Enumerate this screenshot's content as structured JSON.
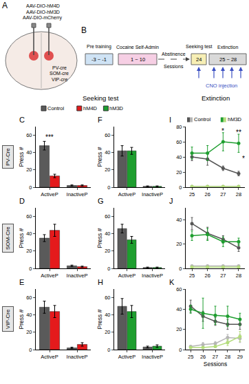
{
  "figure": {
    "panel_a": {
      "letter": "A",
      "viruses": [
        "AAV-DIO-hM4D",
        "AAV-DIO-hM3D",
        "AAV-DIO-mCherry"
      ],
      "cre_lines": [
        "PV-cre",
        "SOM-cre",
        "VIP-cre"
      ]
    },
    "panel_b": {
      "letter": "B",
      "stages": [
        {
          "label": "Pre training",
          "sessions": "-3 ~ -1"
        },
        {
          "label": "Cocaine Self-Admin",
          "sessions": "1 ~ 10"
        },
        {
          "label": "Abstinence"
        },
        {
          "label": "Seeking test",
          "sessions": "24"
        },
        {
          "label": "Extinction",
          "sessions": "25 ~ 28"
        }
      ],
      "axis_label": "Sessions",
      "injection": "CNO injection"
    },
    "column_titles": [
      "Seeking test",
      "Extinction"
    ],
    "row_labels": [
      "PV-Cre",
      "SOM-Cre",
      "VIP-Cre"
    ],
    "legend_items": [
      {
        "name": "Control",
        "color": "#5a5a5a"
      },
      {
        "name": "hM4D",
        "color": "#e41a1c"
      },
      {
        "name": "hM3D",
        "color": "#1e9e2f"
      }
    ]
  },
  "chart_data": [
    {
      "panel": "C",
      "type": "bar",
      "y_label": "Press #",
      "categories": [
        "ActiveP",
        "InactiveP"
      ],
      "series": [
        {
          "name": "Control",
          "color": "#5a5a5a",
          "values": [
            48,
            2
          ],
          "errors": [
            5,
            0.6
          ]
        },
        {
          "name": "hM4D",
          "color": "#e41a1c",
          "values": [
            13,
            2
          ],
          "errors": [
            2,
            0.6
          ]
        }
      ],
      "ylim": [
        0,
        70
      ],
      "yticks": [
        0,
        20,
        40,
        60
      ],
      "annotations": [
        {
          "text": "***",
          "x": "ActiveP",
          "y": 58
        }
      ]
    },
    {
      "panel": "D",
      "type": "bar",
      "y_label": "Press #",
      "categories": [
        "ActiveP",
        "InactiveP"
      ],
      "series": [
        {
          "name": "Control",
          "color": "#5a5a5a",
          "values": [
            35,
            3
          ],
          "errors": [
            4,
            0.8
          ]
        },
        {
          "name": "hM4D",
          "color": "#e41a1c",
          "values": [
            44,
            2
          ],
          "errors": [
            7,
            0.6
          ]
        }
      ],
      "ylim": [
        0,
        70
      ],
      "yticks": [
        0,
        20,
        40,
        60
      ]
    },
    {
      "panel": "E",
      "type": "bar",
      "y_label": "Press #",
      "categories": [
        "ActiveP",
        "InactiveP"
      ],
      "series": [
        {
          "name": "Control",
          "color": "#5a5a5a",
          "values": [
            49,
            2
          ],
          "errors": [
            7,
            0.8
          ]
        },
        {
          "name": "hM4D",
          "color": "#e41a1c",
          "values": [
            44,
            6
          ],
          "errors": [
            7,
            2
          ]
        }
      ],
      "ylim": [
        0,
        70
      ],
      "yticks": [
        0,
        20,
        40,
        60
      ]
    },
    {
      "panel": "F",
      "type": "bar",
      "y_label": "Press #",
      "categories": [
        "ActiveP",
        "InactiveP"
      ],
      "series": [
        {
          "name": "Control",
          "color": "#5a5a5a",
          "values": [
            42,
            1
          ],
          "errors": [
            6,
            0.5
          ]
        },
        {
          "name": "hM3D",
          "color": "#1e9e2f",
          "values": [
            42,
            1
          ],
          "errors": [
            4,
            0.5
          ]
        }
      ],
      "ylim": [
        0,
        70
      ],
      "yticks": [
        0,
        20,
        40,
        60
      ]
    },
    {
      "panel": "G",
      "type": "bar",
      "y_label": "Press #",
      "categories": [
        "ActiveP",
        "InactiveP"
      ],
      "series": [
        {
          "name": "Control",
          "color": "#5a5a5a",
          "values": [
            46,
            1
          ],
          "errors": [
            5,
            0.5
          ]
        },
        {
          "name": "hM3D",
          "color": "#1e9e2f",
          "values": [
            33,
            1
          ],
          "errors": [
            4,
            0.5
          ]
        }
      ],
      "ylim": [
        0,
        70
      ],
      "yticks": [
        0,
        20,
        40,
        60
      ]
    },
    {
      "panel": "H",
      "type": "bar",
      "y_label": "Press #",
      "categories": [
        "ActiveP",
        "InactiveP"
      ],
      "series": [
        {
          "name": "Control",
          "color": "#5a5a5a",
          "values": [
            50,
            3
          ],
          "errors": [
            9,
            1
          ]
        },
        {
          "name": "hM3D",
          "color": "#1e9e2f",
          "values": [
            44,
            4
          ],
          "errors": [
            7,
            1.5
          ]
        }
      ],
      "ylim": [
        0,
        70
      ],
      "yticks": [
        0,
        20,
        40,
        60
      ]
    },
    {
      "panel": "I",
      "type": "line",
      "legend": "top",
      "x": [
        25,
        26,
        27,
        28
      ],
      "series": [
        {
          "name": "Control",
          "color": "#555555",
          "values": [
            40,
            37,
            25,
            18
          ],
          "errors": [
            5,
            8,
            3,
            3
          ]
        },
        {
          "name": "Control",
          "color": "#b5b5b5",
          "values": [
            1,
            1,
            1,
            1
          ],
          "errors": [
            0.5,
            0.5,
            0.5,
            0.5
          ]
        },
        {
          "name": "hM3D",
          "color": "#1e9e2f",
          "values": [
            45,
            45,
            60,
            58
          ],
          "errors": [
            8,
            10,
            12,
            12
          ]
        },
        {
          "name": "hM3D",
          "color": "#b3dc7c",
          "values": [
            1,
            1,
            1,
            1
          ],
          "errors": [
            0.5,
            0.5,
            0.5,
            0.5
          ]
        }
      ],
      "xlim": [
        24.6,
        28.4
      ],
      "xticks": [
        25,
        26,
        27,
        28
      ],
      "ylim": [
        0,
        80
      ],
      "yticks": [
        0,
        20,
        40,
        60,
        80
      ],
      "annotations": [
        {
          "text": "*",
          "x": 27,
          "y": 74
        },
        {
          "text": "**",
          "x": 28,
          "y": 72
        },
        {
          "text": "*",
          "x": 28.3,
          "y": 38
        }
      ]
    },
    {
      "panel": "J",
      "type": "line",
      "x": [
        25,
        26,
        27,
        28
      ],
      "series": [
        {
          "name": "Control",
          "color": "#555555",
          "values": [
            37,
            29,
            24,
            17
          ],
          "errors": [
            5,
            5,
            3,
            3
          ]
        },
        {
          "name": "Control",
          "color": "#b5b5b5",
          "values": [
            2,
            2,
            2,
            2
          ],
          "errors": [
            0.6,
            0.6,
            0.6,
            0.6
          ]
        },
        {
          "name": "hM3D",
          "color": "#1e9e2f",
          "values": [
            27,
            28,
            22,
            22
          ],
          "errors": [
            4,
            5,
            4,
            3
          ]
        },
        {
          "name": "hM3D",
          "color": "#b3dc7c",
          "values": [
            1,
            1,
            1,
            1
          ],
          "errors": [
            0.5,
            0.5,
            0.5,
            0.5
          ]
        }
      ],
      "xlim": [
        24.6,
        28.4
      ],
      "xticks": [
        25,
        26,
        27,
        28
      ],
      "ylim": [
        0,
        50
      ],
      "yticks": [
        0,
        20,
        40
      ]
    },
    {
      "panel": "K",
      "type": "line",
      "x_label": "Sessions",
      "x": [
        25,
        26,
        27,
        28,
        29
      ],
      "series": [
        {
          "name": "Control",
          "color": "#555555",
          "values": [
            43,
            33,
            28,
            25,
            25
          ],
          "errors": [
            6,
            5,
            4,
            5,
            5
          ]
        },
        {
          "name": "Control",
          "color": "#b5b5b5",
          "values": [
            3,
            5,
            6,
            12,
            11
          ],
          "errors": [
            1,
            2,
            2,
            3,
            4
          ]
        },
        {
          "name": "hM3D",
          "color": "#1e9e2f",
          "values": [
            40,
            36,
            34,
            33,
            30
          ],
          "errors": [
            4,
            15,
            9,
            10,
            6
          ]
        },
        {
          "name": "hM3D",
          "color": "#b3dc7c",
          "values": [
            2,
            2,
            3,
            7,
            13
          ],
          "errors": [
            1,
            1,
            1,
            3,
            5
          ]
        }
      ],
      "xlim": [
        24.6,
        29.4
      ],
      "xticks": [
        25,
        26,
        27,
        28,
        29
      ],
      "ylim": [
        0,
        60
      ],
      "yticks": [
        0,
        20,
        40,
        60
      ]
    }
  ]
}
